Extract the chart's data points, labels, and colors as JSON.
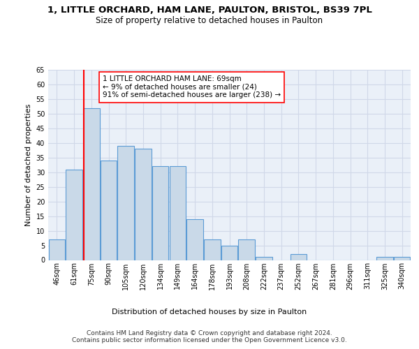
{
  "title1": "1, LITTLE ORCHARD, HAM LANE, PAULTON, BRISTOL, BS39 7PL",
  "title2": "Size of property relative to detached houses in Paulton",
  "xlabel": "Distribution of detached houses by size in Paulton",
  "ylabel": "Number of detached properties",
  "categories": [
    "46sqm",
    "61sqm",
    "75sqm",
    "90sqm",
    "105sqm",
    "120sqm",
    "134sqm",
    "149sqm",
    "164sqm",
    "178sqm",
    "193sqm",
    "208sqm",
    "222sqm",
    "237sqm",
    "252sqm",
    "267sqm",
    "281sqm",
    "296sqm",
    "311sqm",
    "325sqm",
    "340sqm"
  ],
  "values": [
    7,
    31,
    52,
    34,
    39,
    38,
    32,
    32,
    14,
    7,
    5,
    7,
    1,
    0,
    2,
    0,
    0,
    0,
    0,
    1,
    1
  ],
  "bar_color": "#c9d9e8",
  "bar_edge_color": "#5b9bd5",
  "annotation_text": "1 LITTLE ORCHARD HAM LANE: 69sqm\n← 9% of detached houses are smaller (24)\n91% of semi-detached houses are larger (238) →",
  "ylim": [
    0,
    65
  ],
  "yticks": [
    0,
    5,
    10,
    15,
    20,
    25,
    30,
    35,
    40,
    45,
    50,
    55,
    60,
    65
  ],
  "grid_color": "#d0d8e8",
  "background_color": "#eaf0f8",
  "footer": "Contains HM Land Registry data © Crown copyright and database right 2024.\nContains public sector information licensed under the Open Government Licence v3.0.",
  "title1_fontsize": 9.5,
  "title2_fontsize": 8.5,
  "xlabel_fontsize": 8,
  "ylabel_fontsize": 8,
  "annotation_fontsize": 7.5,
  "footer_fontsize": 6.5,
  "tick_fontsize": 7
}
